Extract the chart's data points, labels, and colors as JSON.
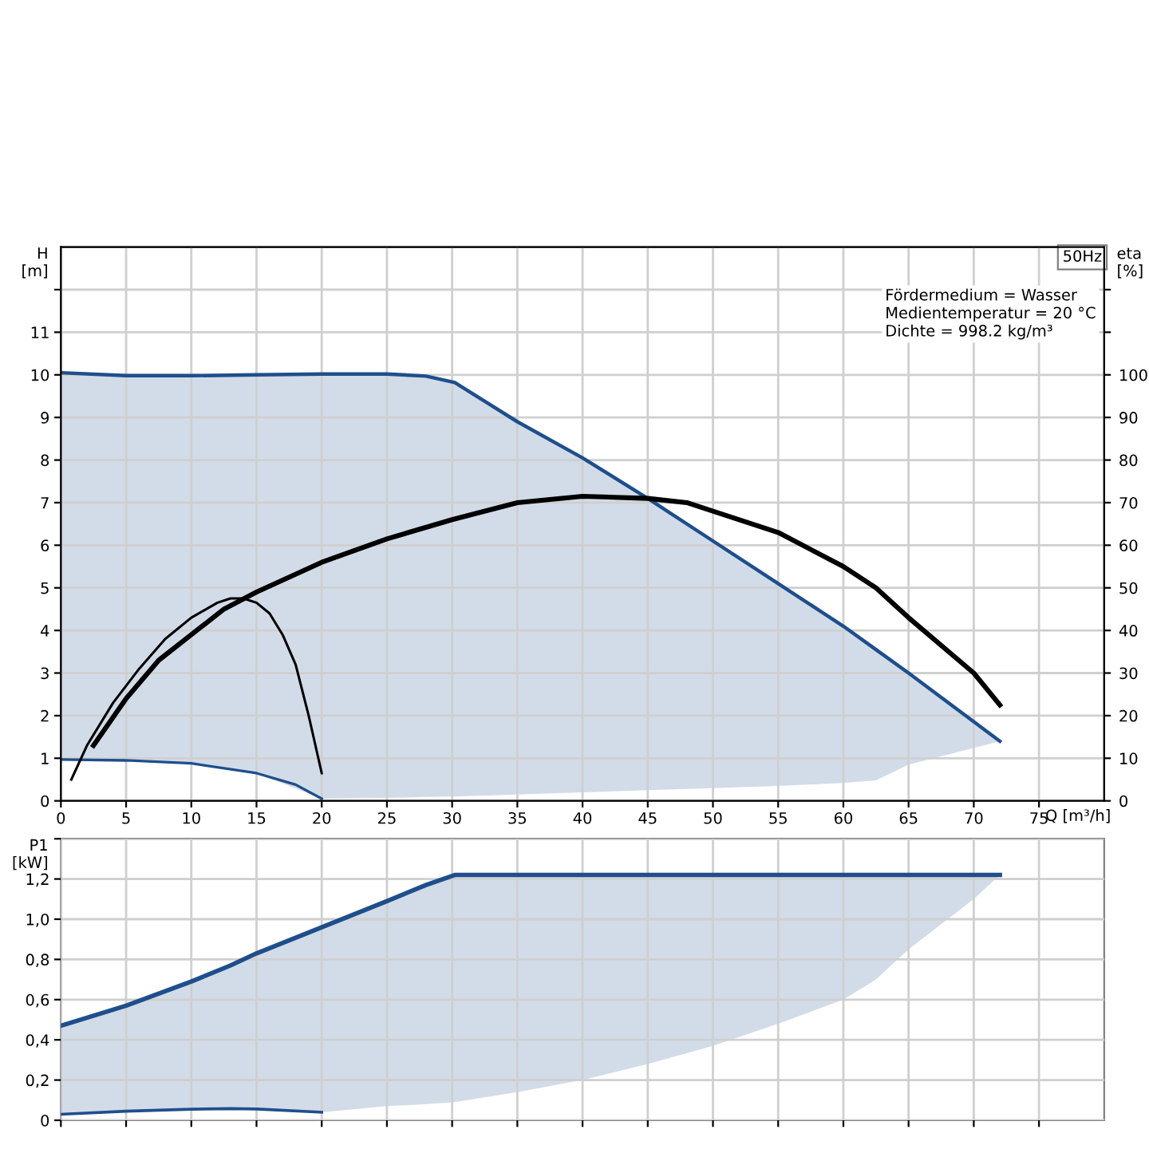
{
  "chart_data": [
    {
      "type": "line",
      "title": "50Hz",
      "annotations": [
        "Fördermedium = Wasser",
        "Medientemperatur = 20 °C",
        "Dichte = 998.2 kg/m³"
      ],
      "xlabel": "Q [m³/h]",
      "ylabel": "H [m]",
      "y2label": "eta [%]",
      "xlim": [
        0,
        80
      ],
      "xticks": [
        0,
        5,
        10,
        15,
        20,
        25,
        30,
        35,
        40,
        45,
        50,
        55,
        60,
        65,
        70,
        75
      ],
      "ylim": [
        0,
        13
      ],
      "yticks": [
        0,
        1,
        2,
        3,
        4,
        5,
        6,
        7,
        8,
        9,
        10,
        11,
        {
          "value": 12,
          "label": null
        }
      ],
      "y2lim": [
        0,
        130
      ],
      "y2ticks": [
        0,
        10,
        20,
        30,
        40,
        50,
        60,
        70,
        80,
        90,
        100,
        {
          "value": 110,
          "label": null
        },
        {
          "value": 120,
          "label": null
        }
      ],
      "grid": true,
      "legend": false,
      "marker": "none",
      "line_style": "solid",
      "series": [
        {
          "color": "#1f4e8c",
          "x": [
            0,
            5,
            10,
            15,
            20,
            25,
            28,
            30.2,
            35,
            40,
            45,
            50,
            55,
            60,
            62.5,
            65,
            72
          ],
          "values": [
            10.05,
            9.98,
            9.98,
            10.0,
            10.02,
            10.02,
            9.97,
            9.82,
            8.9,
            8.05,
            7.1,
            6.1,
            5.1,
            4.1,
            3.55,
            3.0,
            1.4
          ],
          "upper": [
            10.05,
            9.98,
            9.98,
            10.0,
            10.02,
            10.02,
            9.97,
            9.82,
            8.9,
            8.05,
            7.1,
            6.1,
            5.1,
            4.1,
            3.55,
            3.0,
            1.4
          ],
          "lower": [
            0.97,
            0.95,
            0.88,
            0.65,
            0.05,
            0.07,
            0.09,
            0.1,
            0.15,
            0.2,
            0.25,
            0.3,
            0.35,
            0.42,
            0.48,
            0.85,
            1.4
          ]
        },
        {
          "color": "#1f4e8c",
          "x": [
            0,
            5,
            10,
            15,
            18,
            20
          ],
          "values": [
            0.97,
            0.95,
            0.88,
            0.65,
            0.38,
            0.05
          ]
        },
        {
          "color": "#000000",
          "axis": "y2",
          "x": [
            2.5,
            5,
            7.5,
            10,
            12.5,
            15,
            20,
            25,
            30,
            35,
            40,
            45,
            48,
            50,
            55,
            60,
            62.5,
            65,
            70,
            72
          ],
          "values": [
            13,
            24,
            33,
            39,
            45,
            49,
            56,
            61.5,
            66,
            70,
            71.5,
            71,
            70,
            68,
            63,
            55,
            50,
            43,
            30,
            22.5
          ]
        },
        {
          "color": "#000000",
          "axis": "y2",
          "x": [
            0.8,
            2,
            4,
            6,
            8,
            10,
            12,
            13,
            14,
            15,
            16,
            17,
            18,
            19,
            20
          ],
          "values": [
            5,
            13,
            23,
            31,
            38,
            43,
            46.5,
            47.5,
            47.5,
            46.5,
            44,
            39,
            32,
            20,
            6.5
          ]
        }
      ]
    },
    {
      "type": "line",
      "ylabel": "P1 [kW]",
      "tick_labels": "y",
      "xlim": [
        0,
        80
      ],
      "xticks": [
        0,
        5,
        10,
        15,
        20,
        25,
        30,
        35,
        40,
        45,
        50,
        55,
        60,
        65,
        70,
        75
      ],
      "ylim": [
        0,
        1.4
      ],
      "yticks": [
        0,
        {
          "value": 0.2,
          "label": "0,2"
        },
        {
          "value": 0.4,
          "label": "0,4"
        },
        {
          "value": 0.6,
          "label": "0,6"
        },
        {
          "value": 0.8,
          "label": "0,8"
        },
        {
          "value": 1.0,
          "label": "1,0"
        },
        {
          "value": 1.2,
          "label": "1,2"
        },
        {
          "value": 1.4,
          "label": null
        }
      ],
      "grid": true,
      "legend": false,
      "marker": "none",
      "line_style": "solid",
      "series": [
        {
          "color": "#1f4e8c",
          "x": [
            0,
            5,
            10,
            13,
            15,
            20,
            25,
            28,
            30.2,
            35,
            40,
            45,
            50,
            55,
            60,
            62.5,
            65,
            70,
            72
          ],
          "values": [
            0.47,
            0.57,
            0.69,
            0.77,
            0.83,
            0.96,
            1.09,
            1.17,
            1.22,
            1.22,
            1.22,
            1.22,
            1.22,
            1.22,
            1.22,
            1.22,
            1.22,
            1.22,
            1.22
          ],
          "upper": [
            0.47,
            0.57,
            0.69,
            0.77,
            0.83,
            0.96,
            1.09,
            1.17,
            1.22,
            1.22,
            1.22,
            1.22,
            1.22,
            1.22,
            1.22,
            1.22,
            1.22,
            1.22,
            1.22
          ],
          "lower": [
            0.03,
            0.045,
            0.055,
            0.058,
            0.056,
            0.04,
            0.07,
            0.08,
            0.09,
            0.14,
            0.2,
            0.28,
            0.37,
            0.48,
            0.6,
            0.7,
            0.85,
            1.1,
            1.22
          ]
        },
        {
          "color": "#1f4e8c",
          "x": [
            0,
            5,
            10,
            13,
            15,
            20
          ],
          "values": [
            0.03,
            0.045,
            0.055,
            0.058,
            0.056,
            0.04
          ]
        }
      ]
    }
  ]
}
